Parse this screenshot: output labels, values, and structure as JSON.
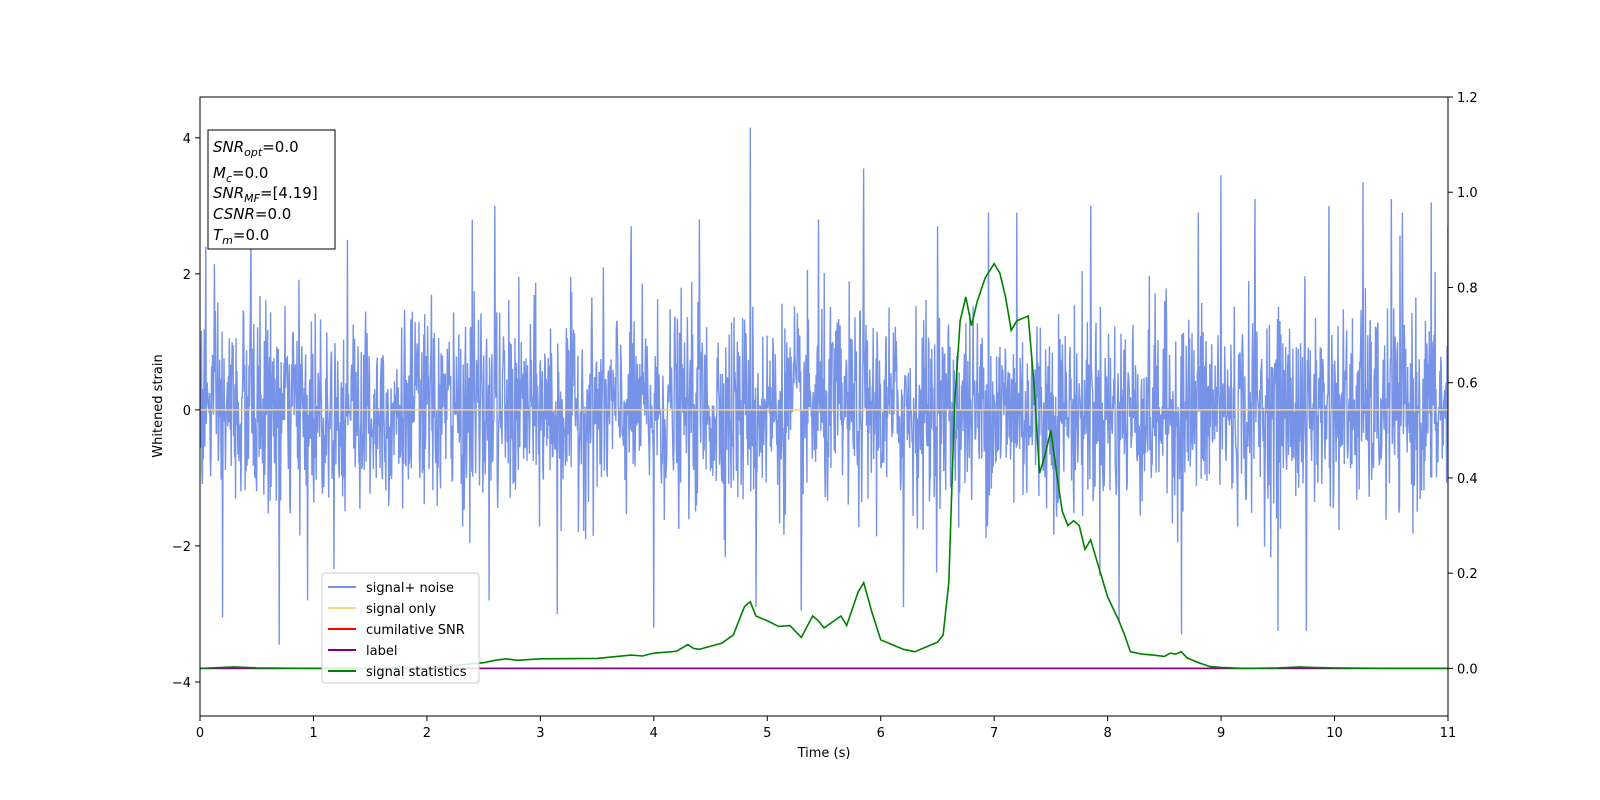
{
  "chart_data": {
    "type": "line",
    "xlabel": "Time (s)",
    "ylabel": "Whitened strain",
    "xlim": [
      0,
      11
    ],
    "ylim": [
      -4.5,
      4.6
    ],
    "y2lim": [
      -0.1,
      1.2
    ],
    "xticks": [
      "0",
      "1",
      "2",
      "3",
      "4",
      "5",
      "6",
      "7",
      "8",
      "9",
      "10",
      "11"
    ],
    "yticks": [
      "−4",
      "−2",
      "0",
      "2",
      "4"
    ],
    "y2ticks": [
      "0.0",
      "0.2",
      "0.4",
      "0.6",
      "0.8",
      "1.0",
      "1.2"
    ],
    "grid": false,
    "legend_position": "lower-left",
    "legend": [
      {
        "label": "signal+ noise",
        "color": "#7793e8"
      },
      {
        "label": "signal only",
        "color": "#ffd27f"
      },
      {
        "label": "cumilative SNR",
        "color": "#ff0000"
      },
      {
        "label": "label",
        "color": "#800080"
      },
      {
        "label": "signal statistics",
        "color": "#008000"
      }
    ],
    "info_box": {
      "snr_opt": {
        "base": "SNR",
        "sub": "opt",
        "value": "=0.0"
      },
      "mc": {
        "base": "M",
        "sub": "c",
        "value": "=0.0"
      },
      "snr_mf": {
        "base": "SNR",
        "sub": "MF",
        "value": "=[4.19]"
      },
      "csnr": {
        "base": "CSNR",
        "sub": "",
        "value": "=0.0"
      },
      "tm": {
        "base": "T",
        "sub": "m",
        "value": "=0.0"
      }
    },
    "series": [
      {
        "name": "signal+ noise",
        "axis": "left",
        "color": "#7793e8",
        "envelope": {
          "typical_upper": 1.7,
          "typical_lower": -1.7,
          "peaks": [
            [
              0.05,
              2.4
            ],
            [
              0.45,
              2.6
            ],
            [
              0.7,
              -3.45
            ],
            [
              0.2,
              -3.05
            ],
            [
              0.95,
              -2.8
            ],
            [
              1.3,
              2.5
            ],
            [
              2.4,
              2.8
            ],
            [
              2.55,
              -2.8
            ],
            [
              2.6,
              3.0
            ],
            [
              3.15,
              -3.0
            ],
            [
              3.8,
              2.7
            ],
            [
              4.0,
              -3.2
            ],
            [
              4.4,
              2.8
            ],
            [
              4.85,
              4.15
            ],
            [
              4.9,
              -2.9
            ],
            [
              5.3,
              -2.95
            ],
            [
              5.45,
              2.8
            ],
            [
              5.85,
              3.55
            ],
            [
              6.2,
              -2.9
            ],
            [
              6.5,
              2.7
            ],
            [
              6.95,
              2.9
            ],
            [
              7.2,
              2.9
            ],
            [
              7.85,
              3.0
            ],
            [
              8.1,
              -3.1
            ],
            [
              8.65,
              -3.3
            ],
            [
              8.8,
              2.9
            ],
            [
              9.0,
              3.45
            ],
            [
              9.3,
              3.1
            ],
            [
              9.5,
              -3.25
            ],
            [
              9.75,
              -3.25
            ],
            [
              9.95,
              3.0
            ],
            [
              10.25,
              3.35
            ],
            [
              10.5,
              3.1
            ],
            [
              10.6,
              2.9
            ],
            [
              10.85,
              3.05
            ],
            [
              11.0,
              2.7
            ]
          ]
        }
      },
      {
        "name": "signal only",
        "axis": "left",
        "color": "#ffd27f",
        "x": [
          0,
          11
        ],
        "y": [
          0,
          0
        ]
      },
      {
        "name": "cumilative SNR",
        "axis": "right",
        "color": "#ff0000",
        "x": [
          0,
          11
        ],
        "y": [
          0,
          0
        ]
      },
      {
        "name": "label",
        "axis": "right",
        "color": "#800080",
        "x": [
          0,
          11
        ],
        "y": [
          0,
          0
        ]
      },
      {
        "name": "signal statistics",
        "axis": "right",
        "color": "#008000",
        "x": [
          0,
          0.3,
          0.5,
          1.0,
          1.5,
          2.0,
          2.5,
          2.6,
          2.7,
          2.8,
          3.0,
          3.5,
          3.8,
          3.9,
          4.0,
          4.2,
          4.3,
          4.35,
          4.4,
          4.6,
          4.7,
          4.8,
          4.85,
          4.9,
          5.0,
          5.1,
          5.2,
          5.3,
          5.4,
          5.45,
          5.5,
          5.65,
          5.7,
          5.8,
          5.85,
          5.92,
          6.0,
          6.1,
          6.2,
          6.3,
          6.4,
          6.5,
          6.55,
          6.6,
          6.65,
          6.7,
          6.75,
          6.8,
          6.85,
          6.92,
          7.0,
          7.05,
          7.1,
          7.15,
          7.2,
          7.3,
          7.35,
          7.4,
          7.45,
          7.5,
          7.55,
          7.6,
          7.65,
          7.7,
          7.75,
          7.8,
          7.85,
          7.9,
          8.0,
          8.1,
          8.15,
          8.2,
          8.3,
          8.4,
          8.5,
          8.55,
          8.6,
          8.65,
          8.7,
          8.8,
          8.9,
          9.0,
          9.2,
          9.5,
          9.6,
          9.7,
          9.8,
          10.0,
          10.5,
          11.0
        ],
        "y": [
          0,
          0.003,
          0.001,
          0,
          0,
          0.001,
          0.012,
          0.017,
          0.02,
          0.017,
          0.02,
          0.021,
          0.028,
          0.026,
          0.032,
          0.036,
          0.05,
          0.042,
          0.04,
          0.053,
          0.07,
          0.13,
          0.14,
          0.11,
          0.1,
          0.088,
          0.09,
          0.065,
          0.11,
          0.1,
          0.085,
          0.11,
          0.09,
          0.16,
          0.18,
          0.12,
          0.06,
          0.05,
          0.04,
          0.035,
          0.045,
          0.055,
          0.07,
          0.18,
          0.55,
          0.73,
          0.78,
          0.72,
          0.77,
          0.82,
          0.85,
          0.83,
          0.78,
          0.71,
          0.73,
          0.74,
          0.6,
          0.41,
          0.45,
          0.5,
          0.41,
          0.33,
          0.3,
          0.31,
          0.3,
          0.25,
          0.27,
          0.23,
          0.15,
          0.1,
          0.07,
          0.035,
          0.03,
          0.028,
          0.025,
          0.032,
          0.03,
          0.035,
          0.022,
          0.012,
          0.004,
          0.002,
          0,
          0.001,
          0.002,
          0.003,
          0.002,
          0.001,
          0,
          0
        ]
      }
    ]
  }
}
